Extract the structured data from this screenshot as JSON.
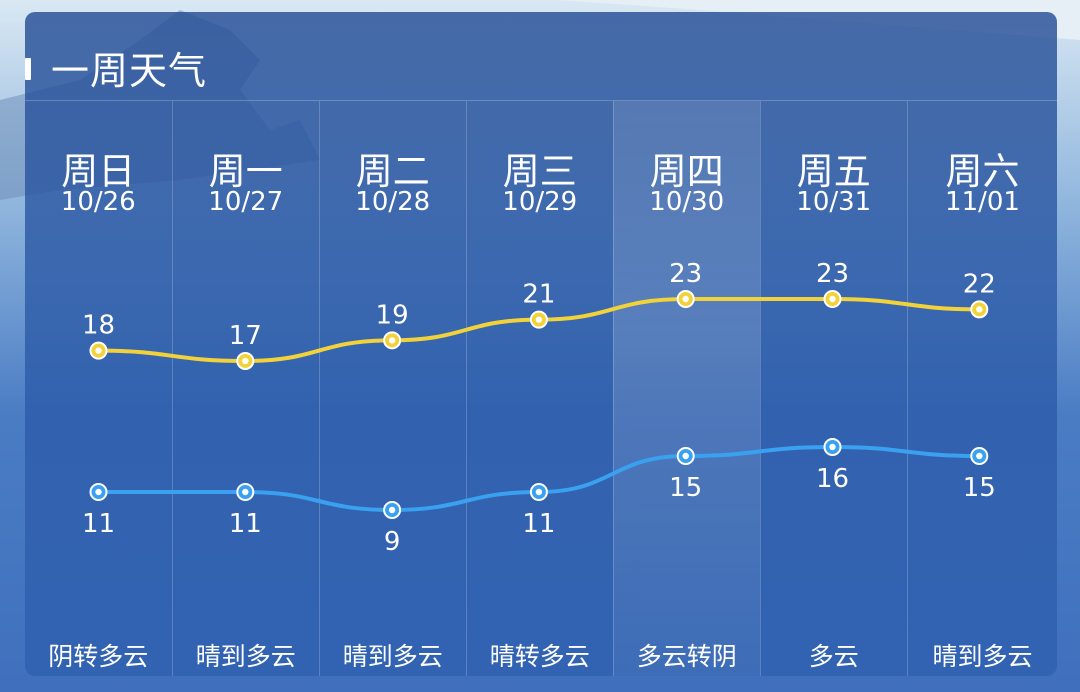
{
  "colors": {
    "high_line": "#f2d23a",
    "low_line": "#3aa0f0",
    "text": "#ffffff"
  },
  "header": {
    "title": "一周天气"
  },
  "days": [
    {
      "name": "周日",
      "date": "10/26",
      "desc": "阴转多云",
      "high": "18",
      "low": "11"
    },
    {
      "name": "周一",
      "date": "10/27",
      "desc": "晴到多云",
      "high": "17",
      "low": "11"
    },
    {
      "name": "周二",
      "date": "10/28",
      "desc": "晴到多云",
      "high": "19",
      "low": "9"
    },
    {
      "name": "周三",
      "date": "10/29",
      "desc": "晴转多云",
      "high": "21",
      "low": "11"
    },
    {
      "name": "周四",
      "date": "10/30",
      "desc": "多云转阴",
      "high": "23",
      "low": "15"
    },
    {
      "name": "周五",
      "date": "10/31",
      "desc": "多云",
      "high": "23",
      "low": "16"
    },
    {
      "name": "周六",
      "date": "11/01",
      "desc": "晴到多云",
      "high": "22",
      "low": "15"
    }
  ],
  "highlighted_day": "周四",
  "chart_data": {
    "type": "line",
    "categories": [
      "周日",
      "周一",
      "周二",
      "周三",
      "周四",
      "周五",
      "周六"
    ],
    "series": [
      {
        "values": [
          18,
          17,
          19,
          21,
          23,
          23,
          22
        ]
      },
      {
        "values": [
          11,
          11,
          9,
          11,
          15,
          16,
          15
        ]
      }
    ],
    "ylim": [
      5,
      27
    ],
    "grid": false,
    "legend": "none"
  }
}
